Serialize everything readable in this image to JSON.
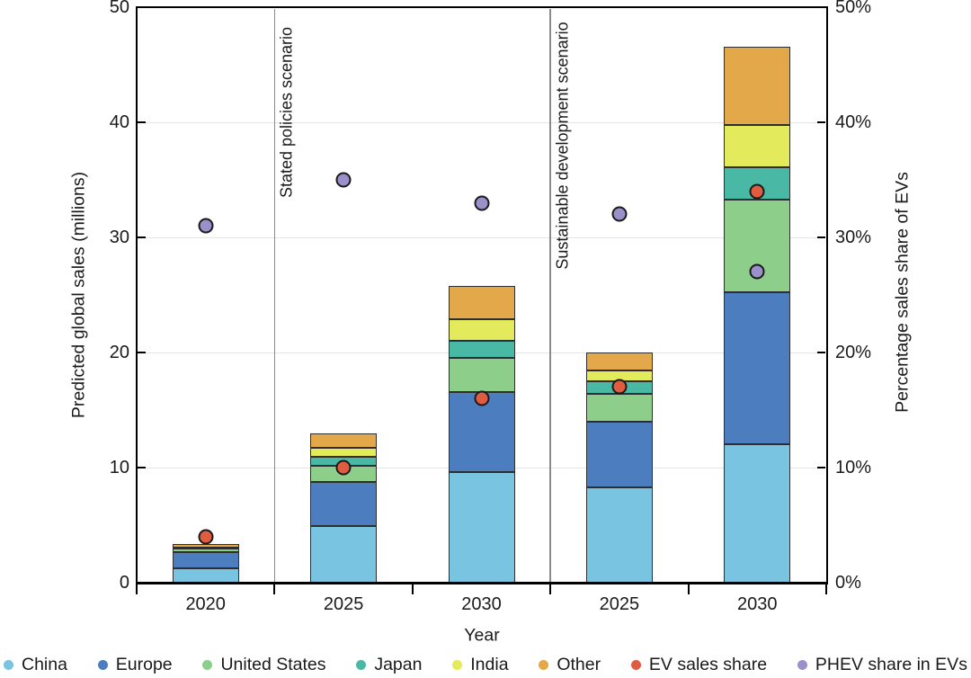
{
  "chart_data": {
    "type": "bar",
    "stacked": true,
    "title": "",
    "xlabel": "Year",
    "ylabel_left": "Predicted global sales (millions)",
    "ylabel_right": "Percentage sales share of EVs",
    "ylim_left": [
      0,
      50
    ],
    "ylim_right_percent": [
      0,
      50
    ],
    "ytick_labels_left": [
      "0",
      "10",
      "20",
      "30",
      "40",
      "50"
    ],
    "ytick_labels_right": [
      "0%",
      "10%",
      "20%",
      "30%",
      "40%",
      "50%"
    ],
    "ytick_values": [
      0,
      10,
      20,
      30,
      40,
      50
    ],
    "grid": "horizontal light-gray lines at 10,20,30,40",
    "legend_position": "bottom",
    "categories": [
      "2020",
      "2025",
      "2030",
      "2025",
      "2030"
    ],
    "scenario_dividers": [
      {
        "label": "Stated policies scenario",
        "after_category_index": 0
      },
      {
        "label": "Sustainable development scenario",
        "after_category_index": 2
      }
    ],
    "bar_series": [
      {
        "name": "China",
        "color": "#79C4E1",
        "values": [
          1.25,
          4.9,
          9.6,
          8.3,
          12.0
        ]
      },
      {
        "name": "Europe",
        "color": "#4C7DBE",
        "values": [
          1.4,
          3.85,
          7.0,
          5.7,
          13.2
        ]
      },
      {
        "name": "United States",
        "color": "#8DCE8B",
        "values": [
          0.33,
          1.4,
          2.9,
          2.4,
          8.1
        ]
      },
      {
        "name": "Japan",
        "color": "#49B9A5",
        "values": [
          0.05,
          0.75,
          1.5,
          1.1,
          2.8
        ]
      },
      {
        "name": "India",
        "color": "#E3EB5C",
        "values": [
          0.05,
          0.85,
          1.9,
          0.9,
          3.7
        ]
      },
      {
        "name": "Other",
        "color": "#E2A84A",
        "values": [
          0.3,
          1.2,
          2.9,
          1.6,
          6.8
        ]
      }
    ],
    "bar_totals": [
      3.38,
      12.95,
      25.8,
      20.0,
      46.6
    ],
    "point_series": [
      {
        "name": "EV sales share",
        "color": "#E05C41",
        "axis": "right_percent",
        "values": [
          4,
          10,
          16,
          17,
          34
        ]
      },
      {
        "name": "PHEV share in EVs",
        "color": "#9C90CB",
        "axis": "right_percent",
        "values": [
          31,
          35,
          33,
          32,
          27
        ]
      }
    ]
  },
  "legend": {
    "items": [
      {
        "label": "China",
        "color": "#79C4E1"
      },
      {
        "label": "Europe",
        "color": "#4C7DBE"
      },
      {
        "label": "United States",
        "color": "#8DCE8B"
      },
      {
        "label": "Japan",
        "color": "#49B9A5"
      },
      {
        "label": "India",
        "color": "#E3EB5C"
      },
      {
        "label": "Other",
        "color": "#E2A84A"
      },
      {
        "label": "EV sales share",
        "color": "#E05C41"
      },
      {
        "label": "PHEV share in EVs",
        "color": "#9C90CB"
      }
    ]
  },
  "styles": {
    "gridline_color": "#e4e4e4",
    "divider_color": "#8a8a8a",
    "segment_border_color": "#2e2e2e",
    "marker_border_color": "#1a1a1a",
    "text_color": "#1a1a1a",
    "background": "#ffffff"
  }
}
